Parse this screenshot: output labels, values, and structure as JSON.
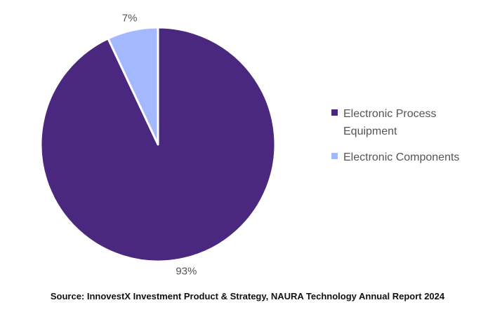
{
  "chart_data": {
    "type": "pie",
    "slices": [
      {
        "label": "Electronic Process Equipment",
        "value": 93,
        "value_label": "93%",
        "color": "#4b2880"
      },
      {
        "label": "Electronic Components",
        "value": 7,
        "value_label": "7%",
        "color": "#a4b8ff"
      }
    ],
    "legend_position": "right"
  },
  "source": "Source: InnovestX Investment Product & Strategy, NAURA Technology Annual Report 2024"
}
